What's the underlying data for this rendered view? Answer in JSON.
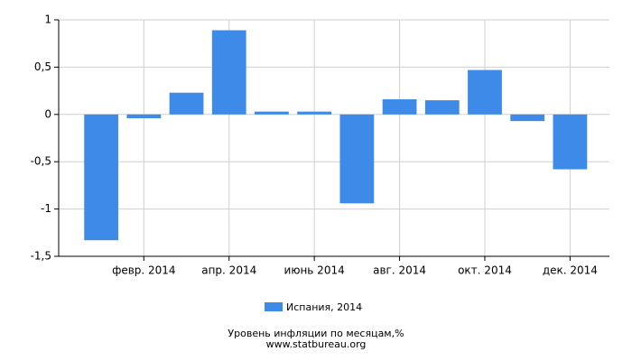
{
  "chart_data": {
    "type": "bar",
    "title": "Уровень инфляции по месяцам,%",
    "subtitle": "www.statbureau.org",
    "categories": [
      null,
      "февр. 2014",
      null,
      "апр. 2014",
      null,
      "июнь 2014",
      null,
      "авг. 2014",
      null,
      "окт. 2014",
      null,
      "дек. 2014"
    ],
    "series": [
      {
        "name": "Испания, 2014",
        "color": "#3d8ae8",
        "values": [
          -1.33,
          -0.04,
          0.23,
          0.89,
          0.03,
          0.03,
          -0.94,
          0.16,
          0.15,
          0.47,
          -0.07,
          -0.58
        ]
      }
    ],
    "ylim": [
      -1.5,
      1
    ],
    "yticks": [
      {
        "value": -1.5,
        "label": "-1,5"
      },
      -1,
      {
        "value": -0.5,
        "label": "-0,5"
      },
      0,
      {
        "value": 0.5,
        "label": "0,5"
      },
      1
    ],
    "grid": true
  }
}
